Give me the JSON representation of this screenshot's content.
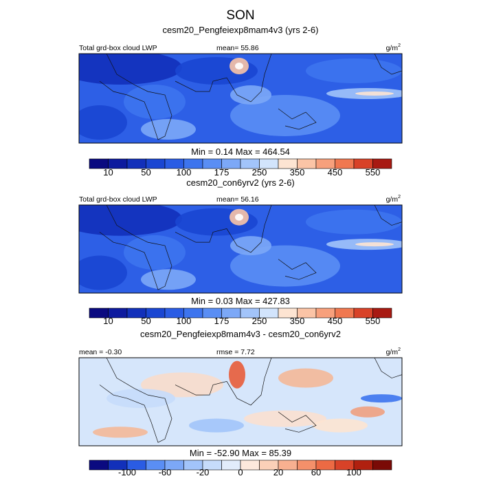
{
  "title": "SON",
  "panels": [
    {
      "title": "cesm20_Pengfeiexp8mam4v3 (yrs 2-6)",
      "left": "Total grd-box cloud LWP",
      "center": "mean=  55.86",
      "units": {
        "base": "g/m",
        "sup": "2"
      },
      "minmax": "Min =   0.14 Max = 464.54",
      "colorbar": {
        "colors": [
          "#0a0a80",
          "#0d1a9e",
          "#1230ba",
          "#1a46d2",
          "#2a5ce4",
          "#3d74ee",
          "#5a8ef4",
          "#7ca8f7",
          "#a2c4fa",
          "#d2e4fc",
          "#fde4d2",
          "#fbc4a6",
          "#f7a07c",
          "#f07850",
          "#d84228",
          "#a81a12"
        ],
        "labels": [
          "10",
          "50",
          "100",
          "175",
          "250",
          "350",
          "450",
          "550"
        ],
        "label_boundaries_start": 1
      }
    },
    {
      "title": "cesm20_con6yrv2 (yrs 2-6)",
      "left": "Total grd-box cloud LWP",
      "center": "mean=  56.16",
      "units": {
        "base": "g/m",
        "sup": "2"
      },
      "minmax": "Min =   0.03 Max = 427.83",
      "colorbar": {
        "colors": [
          "#0a0a80",
          "#0d1a9e",
          "#1230ba",
          "#1a46d2",
          "#2a5ce4",
          "#3d74ee",
          "#5a8ef4",
          "#7ca8f7",
          "#a2c4fa",
          "#d2e4fc",
          "#fde4d2",
          "#fbc4a6",
          "#f7a07c",
          "#f07850",
          "#d84228",
          "#a81a12"
        ],
        "labels": [
          "10",
          "50",
          "100",
          "175",
          "250",
          "350",
          "450",
          "550"
        ],
        "label_boundaries_start": 1
      }
    },
    {
      "title": "cesm20_Pengfeiexp8mam4v3 - cesm20_con6yrv2",
      "left": "mean =  -0.30",
      "center": "rmse =   7.72",
      "units": {
        "base": "g/m",
        "sup": "2"
      },
      "minmax": "Min = -52.90 Max =  85.39",
      "colorbar": {
        "colors": [
          "#0a0a80",
          "#1230ba",
          "#2a5ce4",
          "#5a8ef4",
          "#7ca8f7",
          "#a2c4fa",
          "#c6dcfb",
          "#e2ecfb",
          "#fde8dc",
          "#fbd0b8",
          "#f8b090",
          "#f4906a",
          "#ec6a44",
          "#d84228",
          "#b0200f",
          "#7a0a06"
        ],
        "labels": [
          "-100",
          "-60",
          "-20",
          "0",
          "20",
          "60",
          "100"
        ],
        "label_boundaries_start": 2
      }
    }
  ]
}
